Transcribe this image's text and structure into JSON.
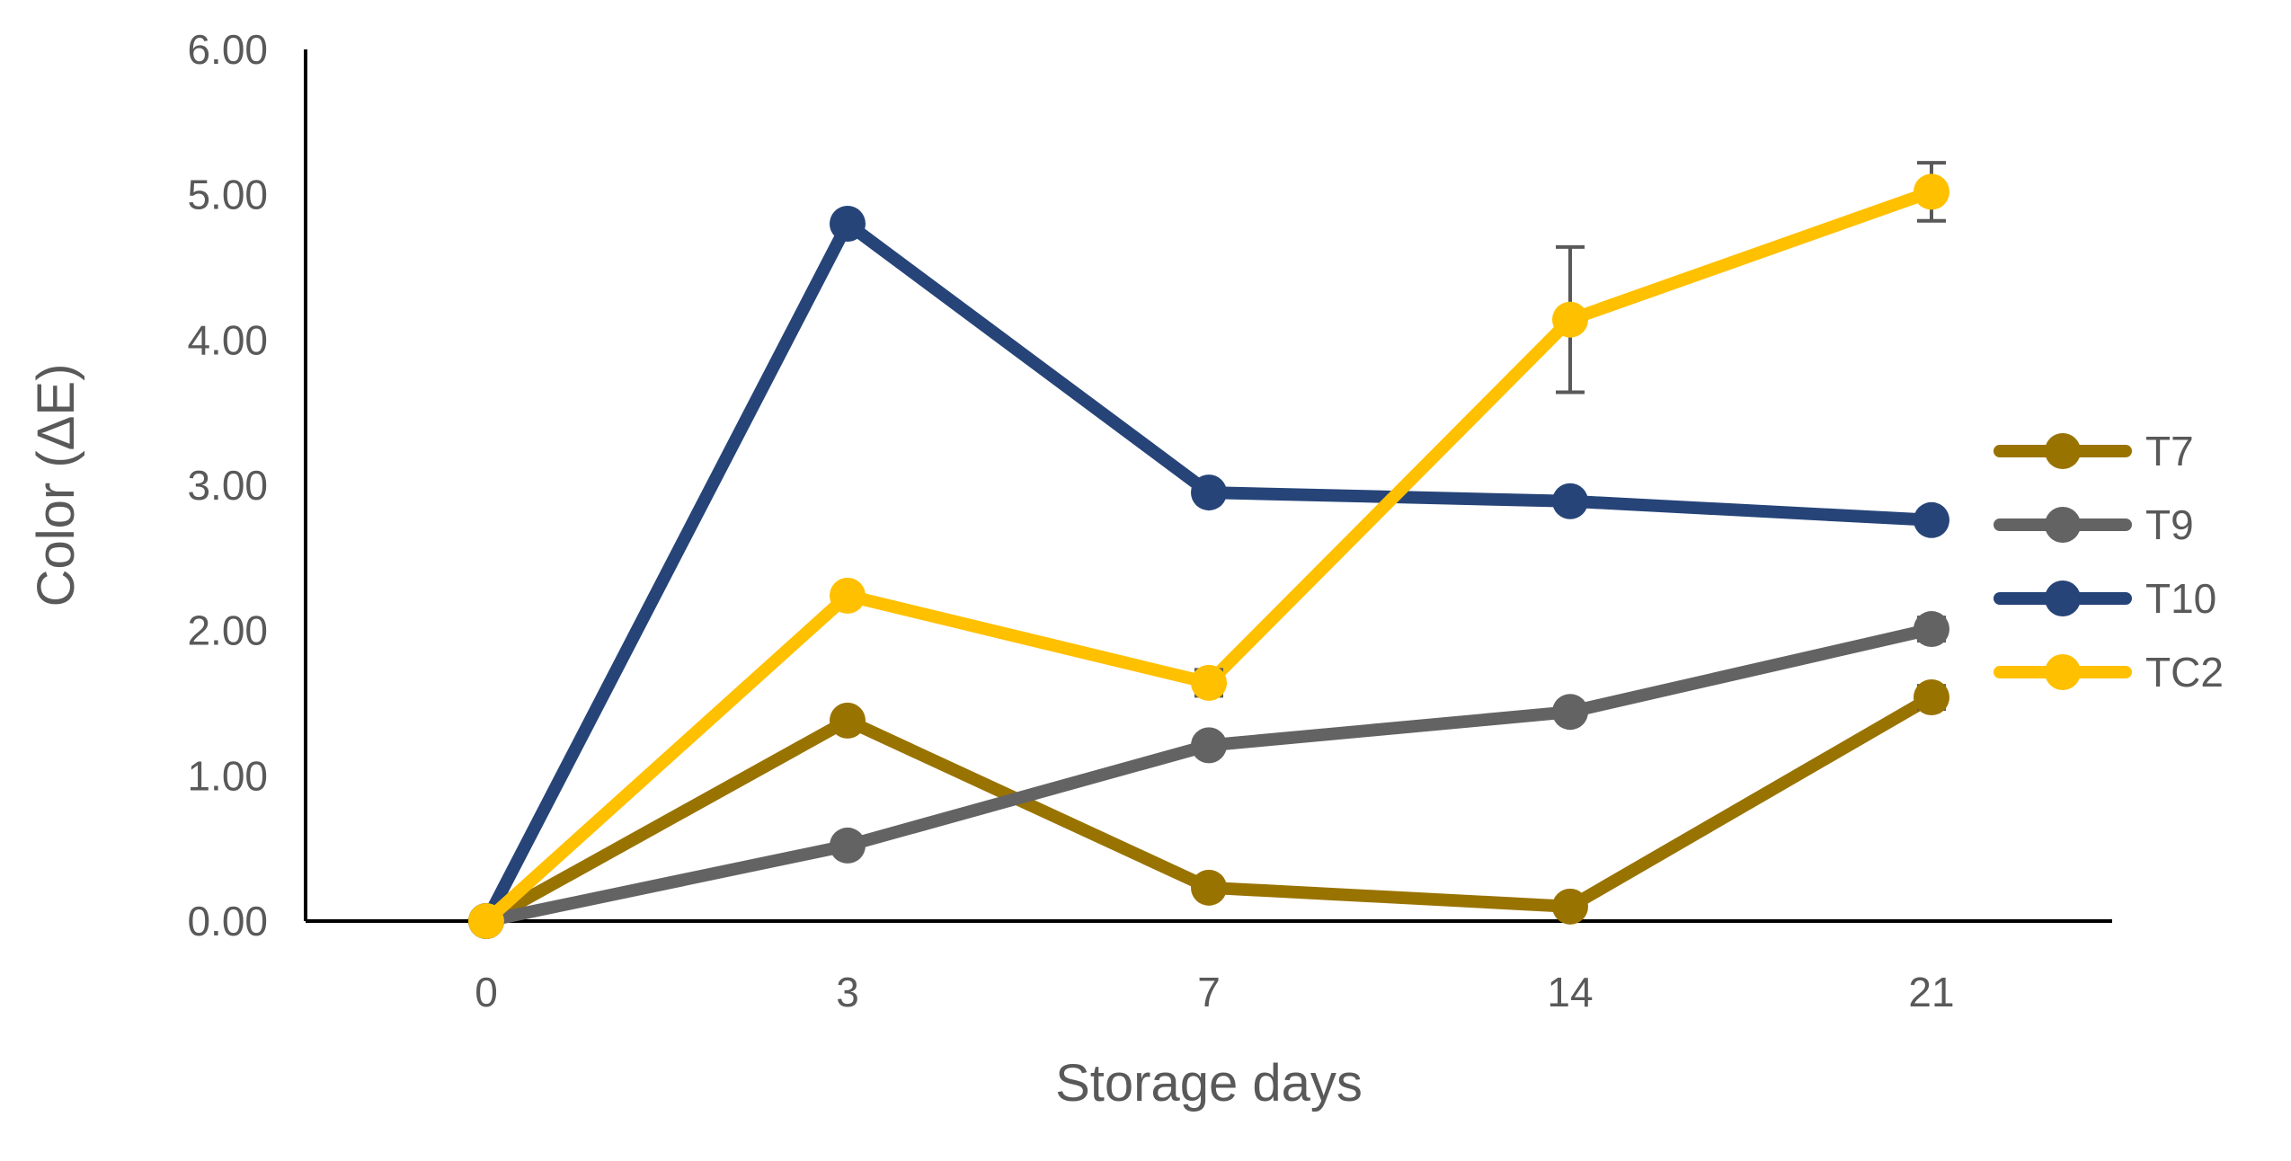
{
  "chart_data": {
    "type": "line",
    "title": "",
    "xlabel": "Storage days",
    "ylabel": "Color (ΔE)",
    "categories": [
      "0",
      "3",
      "7",
      "14",
      "21"
    ],
    "ylim": [
      0,
      6
    ],
    "y_ticks": [
      "0.00",
      "1.00",
      "2.00",
      "3.00",
      "4.00",
      "5.00",
      "6.00"
    ],
    "grid": false,
    "legend_position": "right",
    "series": [
      {
        "name": "T7",
        "color": "#997300",
        "values": [
          0.0,
          1.38,
          0.23,
          0.1,
          1.54
        ],
        "errors": [
          0,
          0.05,
          0.04,
          0.04,
          0.08
        ]
      },
      {
        "name": "T9",
        "color": "#636363",
        "values": [
          0.0,
          0.52,
          1.21,
          1.44,
          2.01
        ],
        "errors": [
          0,
          0.03,
          0.04,
          0.04,
          0.08
        ]
      },
      {
        "name": "T10",
        "color": "#264478",
        "values": [
          0.0,
          4.8,
          2.95,
          2.89,
          2.76
        ],
        "errors": [
          0,
          0.05,
          0.04,
          0.05,
          0.04
        ]
      },
      {
        "name": "TC2",
        "color": "#FFC000",
        "values": [
          0.0,
          2.24,
          1.64,
          4.14,
          5.02
        ],
        "errors": [
          0,
          0.06,
          0.09,
          0.5,
          0.2
        ]
      }
    ]
  }
}
